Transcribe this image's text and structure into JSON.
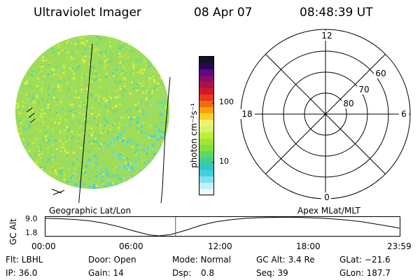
{
  "header": {
    "title": "Ultraviolet Imager",
    "date": "08 Apr 07",
    "time": "08:48:39 UT"
  },
  "colorbar": {
    "unit": "photon cm⁻²s⁻¹",
    "ticks": [
      "100",
      "10"
    ],
    "colors": [
      "#1a0e2a",
      "#2a0850",
      "#5a0a8a",
      "#8a0c6a",
      "#b0104a",
      "#d0182c",
      "#e63a1a",
      "#f06a12",
      "#f8a010",
      "#f8d020",
      "#f0f070",
      "#dcf070",
      "#c0ec40",
      "#a0e630",
      "#80e040",
      "#60d860",
      "#40d090",
      "#30c8c0",
      "#40d0e0",
      "#80e0f0",
      "#c0f0f8",
      "#e8f8fc"
    ]
  },
  "image_panel": {
    "base_color": "#9edc5a",
    "speckle_colors": [
      "#b8e840",
      "#8cd868",
      "#c8ec3c",
      "#60d4a0",
      "#78dc88",
      "#a8e450",
      "#e0f040"
    ],
    "lower_right_colors": [
      "#5cd8d0",
      "#48d4e0",
      "#80e0c0",
      "#40cce8"
    ]
  },
  "polar": {
    "labels": {
      "top": "12",
      "bottom": "0",
      "left": "18",
      "right": "6",
      "lat60": "60",
      "lat70": "70",
      "lat80": "80"
    }
  },
  "coords": {
    "left_label": "Geographic Lat/Lon",
    "right_label": "Apex MLat/MLT"
  },
  "altitude": {
    "axis_label": "GC Alt",
    "ticks": [
      "9.0",
      "1.8"
    ],
    "time_ticks": [
      "00:00",
      "06:00",
      "12:00",
      "18:00",
      "23:59"
    ],
    "current_marker_hours": 8.81,
    "marker_color": "#c03030"
  },
  "info": {
    "row1": {
      "flt": "Flt: LBHL",
      "door": "Door: Open",
      "mode": "Mode: Normal",
      "gcalt": "GC Alt: 3.4 Re",
      "glat": "GLat: −21.6"
    },
    "row2": {
      "ip": "IP: 36.0",
      "gain": "Gain: 14",
      "dsp_label": "Dsp:",
      "dsp_value": "0.8",
      "seq": "Seq: 39",
      "glon": "GLon: 187.7"
    }
  }
}
